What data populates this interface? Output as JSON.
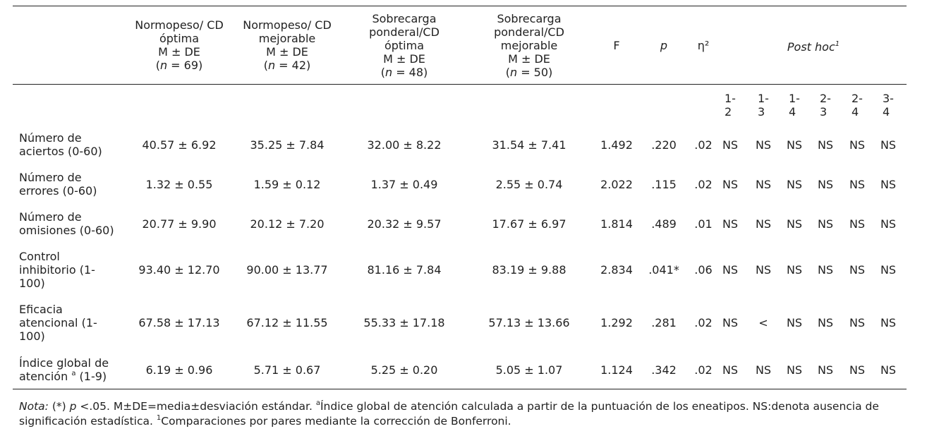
{
  "table": {
    "columns": {
      "g1": {
        "line1": "Normopeso/ CD",
        "line2": "óptima",
        "line3": "M ± DE",
        "n_label": "n",
        "n_value": " = 69)"
      },
      "g2": {
        "line1": "Normopeso/ CD",
        "line2": "mejorable",
        "line3": "M ± DE",
        "n_label": "n",
        "n_value": " = 42)"
      },
      "g3": {
        "line1": "Sobrecarga",
        "line2": "ponderal/CD",
        "line3": "óptima",
        "line4": "M ± DE",
        "n_label": "n",
        "n_value": " = 48)"
      },
      "g4": {
        "line1": "Sobrecarga",
        "line2": "ponderal/CD",
        "line3": "mejorable",
        "line4": "M ± DE",
        "n_label": "n",
        "n_value": " = 50)"
      },
      "f": "F",
      "p": "p",
      "eta": "η²",
      "posthoc": "Post hoc",
      "posthoc_sup": "1"
    },
    "comparisons": [
      {
        "a": "1-",
        "b": "2"
      },
      {
        "a": "1-",
        "b": "3"
      },
      {
        "a": "1-",
        "b": "4"
      },
      {
        "a": "2-",
        "b": "3"
      },
      {
        "a": "2-",
        "b": "4"
      },
      {
        "a": "3-",
        "b": "4"
      }
    ],
    "rows": [
      {
        "label1": "Número de",
        "label2": "aciertos (0-60)",
        "label3": "",
        "g1": "40.57 ± 6.92",
        "g2": "35.25 ± 7.84",
        "g3": "32.00 ± 8.22",
        "g4": "31.54 ± 7.41",
        "f": "1.492",
        "p": ".220",
        "eta": ".02",
        "ph": [
          "NS",
          "NS",
          "NS",
          "NS",
          "NS",
          "NS"
        ]
      },
      {
        "label1": "Número de",
        "label2": "errores (0-60)",
        "label3": "",
        "g1": "1.32 ± 0.55",
        "g2": "1.59 ± 0.12",
        "g3": "1.37 ± 0.49",
        "g4": "2.55 ± 0.74",
        "f": "2.022",
        "p": ".115",
        "eta": ".02",
        "ph": [
          "NS",
          "NS",
          "NS",
          "NS",
          "NS",
          "NS"
        ]
      },
      {
        "label1": "Número de",
        "label2": "omisiones (0-60)",
        "label3": "",
        "g1": "20.77 ± 9.90",
        "g2": "20.12 ± 7.20",
        "g3": "20.32 ± 9.57",
        "g4": "17.67 ± 6.97",
        "f": "1.814",
        "p": ".489",
        "eta": ".01",
        "ph": [
          "NS",
          "NS",
          "NS",
          "NS",
          "NS",
          "NS"
        ]
      },
      {
        "label1": "Control",
        "label2": "inhibitorio (1-",
        "label3": "100)",
        "g1": "93.40 ± 12.70",
        "g2": "90.00 ± 13.77",
        "g3": "81.16 ± 7.84",
        "g4": "83.19 ± 9.88",
        "f": "2.834",
        "p": ".041*",
        "eta": ".06",
        "ph": [
          "NS",
          "NS",
          "NS",
          "NS",
          "NS",
          "NS"
        ]
      },
      {
        "label1": "Eficacia",
        "label2": "atencional (1-",
        "label3": "100)",
        "g1": "67.58 ± 17.13",
        "g2": "67.12 ± 11.55",
        "g3": "55.33 ± 17.18",
        "g4": "57.13 ± 13.66",
        "f": "1.292",
        "p": ".281",
        "eta": ".02",
        "ph": [
          "NS",
          "<",
          "NS",
          "NS",
          "NS",
          "NS"
        ]
      },
      {
        "label1": "Índice global de",
        "label2": "atención",
        "label2_sup": "a",
        "label2_tail": " (1-9)",
        "label3": "",
        "g1": "6.19 ± 0.96",
        "g2": "5.71 ± 0.67",
        "g3": "5.25 ± 0.20",
        "g4": "5.05 ± 1.07",
        "f": "1.124",
        "p": ".342",
        "eta": ".02",
        "ph": [
          "NS",
          "NS",
          "NS",
          "NS",
          "NS",
          "NS"
        ]
      }
    ]
  },
  "note": {
    "lead": "Nota:",
    "part1": " (*) ",
    "p": "p",
    "part2": " <.05. M±DE=media±desviación estándar. ",
    "sup_a": "a",
    "part3": "Índice global de atención calculada a partir de la puntuación de los eneatipos. NS:denota ausencia de significación estadística. ",
    "sup_1": "1",
    "part4": "Comparaciones por pares mediante la corrección de Bonferroni."
  }
}
